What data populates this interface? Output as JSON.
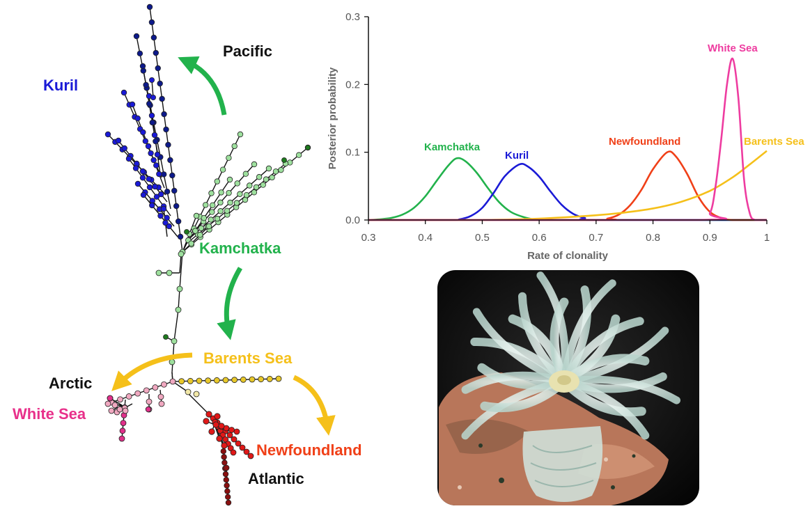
{
  "network": {
    "labels": {
      "pacific": "Pacific",
      "kuril": "Kuril",
      "kamchatka": "Kamchatka",
      "barents": "Barents Sea",
      "arctic": "Arctic",
      "white_sea": "White Sea",
      "newfoundland": "Newfoundland",
      "atlantic": "Atlantic"
    },
    "colors": {
      "kuril": "#1a1ad6",
      "kuril_dark": "#0d1a8a",
      "kamchatka": "#9ee09e",
      "kamchatka_dark": "#1e7a1e",
      "barents": "#e8c82a",
      "barents_light": "#f2e8a8",
      "white_sea": "#e0308a",
      "arctic_pink": "#f0a8c0",
      "newfoundland": "#e01818",
      "atlantic": "#8a1010",
      "arrow_green": "#22b24c",
      "arrow_yellow": "#f5c01a",
      "label_blue": "#1a1ad6",
      "label_green": "#22b24c",
      "label_yellow": "#f5c01a",
      "label_pink": "#e8308a",
      "label_orange": "#f04018",
      "label_black": "#111111"
    }
  },
  "chart_data": {
    "type": "line",
    "title": "",
    "xlabel": "Rate of clonality",
    "ylabel": "Posterior probability",
    "xlim": [
      0.3,
      1.0
    ],
    "ylim": [
      0.0,
      0.3
    ],
    "xticks": [
      "0.3",
      "0.4",
      "0.5",
      "0.6",
      "0.7",
      "0.8",
      "0.9",
      "1"
    ],
    "yticks": [
      "0.0",
      "0.1",
      "0.2",
      "0.3"
    ],
    "grid": false,
    "series": [
      {
        "name": "Kamchatka",
        "color": "#22b24c",
        "points": [
          [
            0.3,
            0.0
          ],
          [
            0.32,
            0.001
          ],
          [
            0.34,
            0.003
          ],
          [
            0.36,
            0.008
          ],
          [
            0.38,
            0.018
          ],
          [
            0.4,
            0.035
          ],
          [
            0.42,
            0.058
          ],
          [
            0.44,
            0.08
          ],
          [
            0.455,
            0.091
          ],
          [
            0.47,
            0.087
          ],
          [
            0.49,
            0.07
          ],
          [
            0.51,
            0.047
          ],
          [
            0.53,
            0.026
          ],
          [
            0.55,
            0.012
          ],
          [
            0.57,
            0.005
          ],
          [
            0.59,
            0.001
          ],
          [
            0.62,
            0.0
          ],
          [
            1.0,
            0.0
          ]
        ]
      },
      {
        "name": "Kuril",
        "color": "#1a1ad6",
        "points": [
          [
            0.3,
            0.0
          ],
          [
            0.44,
            0.0
          ],
          [
            0.46,
            0.001
          ],
          [
            0.48,
            0.006
          ],
          [
            0.5,
            0.018
          ],
          [
            0.52,
            0.04
          ],
          [
            0.54,
            0.065
          ],
          [
            0.565,
            0.082
          ],
          [
            0.58,
            0.079
          ],
          [
            0.6,
            0.064
          ],
          [
            0.62,
            0.042
          ],
          [
            0.64,
            0.022
          ],
          [
            0.66,
            0.009
          ],
          [
            0.68,
            0.003
          ],
          [
            0.7,
            0.0
          ],
          [
            1.0,
            0.0
          ]
        ]
      },
      {
        "name": "Newfoundland",
        "color": "#f04018",
        "points": [
          [
            0.3,
            0.0
          ],
          [
            0.7,
            0.0
          ],
          [
            0.72,
            0.002
          ],
          [
            0.74,
            0.008
          ],
          [
            0.76,
            0.022
          ],
          [
            0.78,
            0.045
          ],
          [
            0.8,
            0.075
          ],
          [
            0.825,
            0.1
          ],
          [
            0.84,
            0.094
          ],
          [
            0.86,
            0.068
          ],
          [
            0.88,
            0.034
          ],
          [
            0.9,
            0.012
          ],
          [
            0.92,
            0.003
          ],
          [
            0.94,
            0.0
          ],
          [
            1.0,
            0.0
          ]
        ]
      },
      {
        "name": "Barents Sea",
        "color": "#f5c01a",
        "points": [
          [
            0.3,
            0.0
          ],
          [
            0.5,
            0.0
          ],
          [
            0.6,
            0.002
          ],
          [
            0.7,
            0.007
          ],
          [
            0.75,
            0.011
          ],
          [
            0.8,
            0.017
          ],
          [
            0.85,
            0.027
          ],
          [
            0.9,
            0.043
          ],
          [
            0.94,
            0.063
          ],
          [
            0.97,
            0.082
          ],
          [
            1.0,
            0.102
          ]
        ]
      },
      {
        "name": "White Sea",
        "color": "#ee3ca0",
        "points": [
          [
            0.3,
            0.0
          ],
          [
            0.88,
            0.0
          ],
          [
            0.9,
            0.01
          ],
          [
            0.91,
            0.05
          ],
          [
            0.92,
            0.12
          ],
          [
            0.93,
            0.2
          ],
          [
            0.94,
            0.238
          ],
          [
            0.95,
            0.18
          ],
          [
            0.96,
            0.06
          ],
          [
            0.97,
            0.01
          ],
          [
            0.98,
            0.0
          ],
          [
            1.0,
            0.0
          ]
        ]
      }
    ]
  },
  "photo": {
    "subject": "sea-anemone"
  }
}
